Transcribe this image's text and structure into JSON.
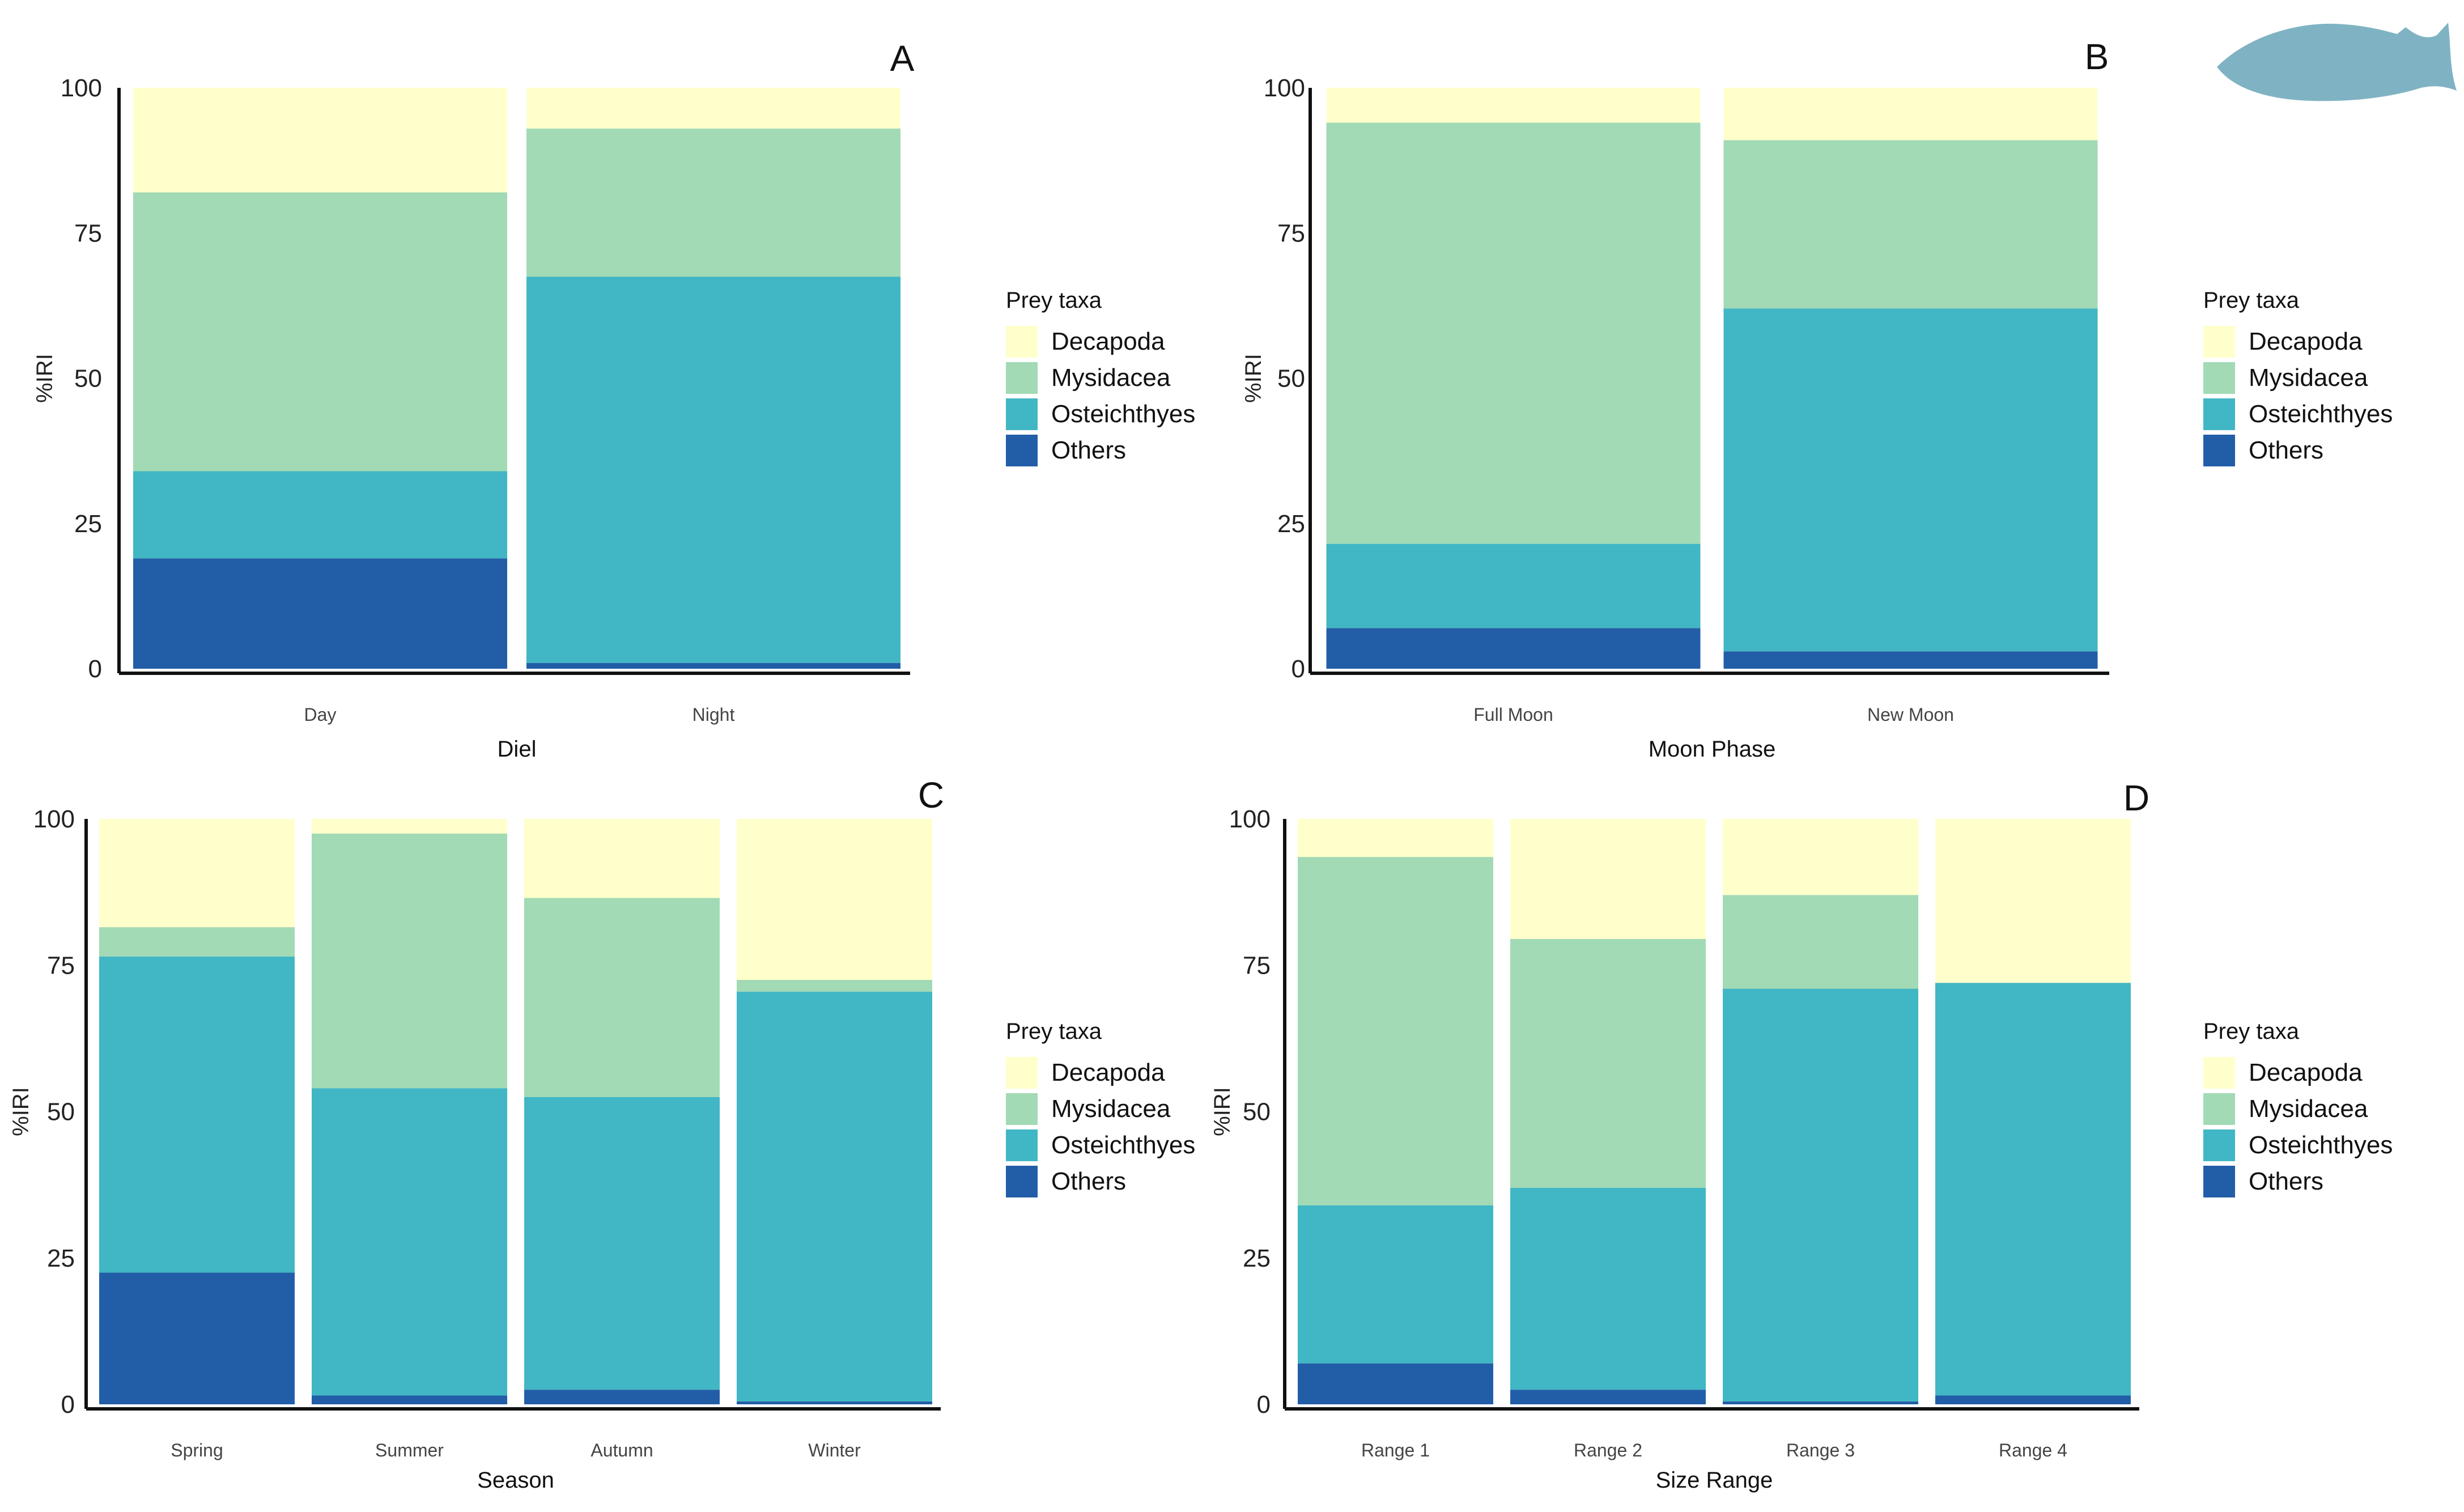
{
  "colors": {
    "Decapoda": "#ffffcc",
    "Mysidacea": "#a1dab4",
    "Osteichthyes": "#41b6c4",
    "Others": "#225ea8",
    "fish": "#7fb3c3"
  },
  "legend": {
    "title": "Prey taxa",
    "items": [
      "Decapoda",
      "Mysidacea",
      "Osteichthyes",
      "Others"
    ]
  },
  "decoration": {
    "fish_icon": "fish-silhouette-icon"
  },
  "chart_data": [
    {
      "panel": "A",
      "type": "bar",
      "stacked": true,
      "xlabel": "Diel",
      "ylabel": "%IRI",
      "ylim": [
        0,
        100
      ],
      "yticks": [
        "0",
        "25",
        "50",
        "75",
        "100"
      ],
      "categories": [
        "Day",
        "Night"
      ],
      "series": [
        {
          "name": "Others",
          "values": [
            19,
            1
          ]
        },
        {
          "name": "Osteichthyes",
          "values": [
            15,
            66.5
          ]
        },
        {
          "name": "Mysidacea",
          "values": [
            48,
            25.5
          ]
        },
        {
          "name": "Decapoda",
          "values": [
            18,
            7
          ]
        }
      ]
    },
    {
      "panel": "B",
      "type": "bar",
      "stacked": true,
      "xlabel": "Moon Phase",
      "ylabel": "%IRI",
      "ylim": [
        0,
        100
      ],
      "yticks": [
        "0",
        "25",
        "50",
        "75",
        "100"
      ],
      "categories": [
        "Full Moon",
        "New Moon"
      ],
      "series": [
        {
          "name": "Others",
          "values": [
            7,
            3
          ]
        },
        {
          "name": "Osteichthyes",
          "values": [
            14.5,
            59
          ]
        },
        {
          "name": "Mysidacea",
          "values": [
            72.5,
            29
          ]
        },
        {
          "name": "Decapoda",
          "values": [
            6,
            9
          ]
        }
      ]
    },
    {
      "panel": "C",
      "type": "bar",
      "stacked": true,
      "xlabel": "Season",
      "ylabel": "%IRI",
      "ylim": [
        0,
        100
      ],
      "yticks": [
        "0",
        "25",
        "50",
        "75",
        "100"
      ],
      "categories": [
        "Spring",
        "Summer",
        "Autumn",
        "Winter"
      ],
      "series": [
        {
          "name": "Others",
          "values": [
            22.5,
            1.5,
            2.5,
            0.5
          ]
        },
        {
          "name": "Osteichthyes",
          "values": [
            54,
            52.5,
            50,
            70
          ]
        },
        {
          "name": "Mysidacea",
          "values": [
            5,
            43.5,
            34,
            2
          ]
        },
        {
          "name": "Decapoda",
          "values": [
            18.5,
            2.5,
            13.5,
            27.5
          ]
        }
      ]
    },
    {
      "panel": "D",
      "type": "bar",
      "stacked": true,
      "xlabel": "Size Range",
      "ylabel": "%IRI",
      "ylim": [
        0,
        100
      ],
      "yticks": [
        "0",
        "25",
        "50",
        "75",
        "100"
      ],
      "categories": [
        "Range 1",
        "Range 2",
        "Range 3",
        "Range 4"
      ],
      "series": [
        {
          "name": "Others",
          "values": [
            7,
            2.5,
            0.5,
            1.5
          ]
        },
        {
          "name": "Osteichthyes",
          "values": [
            27,
            34.5,
            70.5,
            70.5
          ]
        },
        {
          "name": "Mysidacea",
          "values": [
            59.5,
            42.5,
            16,
            0
          ]
        },
        {
          "name": "Decapoda",
          "values": [
            6.5,
            20.5,
            13,
            28
          ]
        }
      ]
    }
  ]
}
